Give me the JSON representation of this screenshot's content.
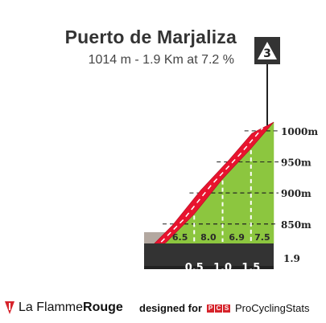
{
  "climb": {
    "title": "Puerto de Marjaliza",
    "subtitle": "1014 m - 1.9 Km at 7.2 %",
    "category": "3"
  },
  "chart_data": {
    "type": "area",
    "title": "Puerto de Marjaliza",
    "subtitle": "1014 m - 1.9 Km at 7.2 %",
    "summit_altitude_m": 1014,
    "length_km": 1.9,
    "avg_gradient_pct": 7.2,
    "category": "3",
    "y_ticks": [
      {
        "value": 1000,
        "label": "1000m"
      },
      {
        "value": 950,
        "label": "950m"
      },
      {
        "value": 900,
        "label": "900m"
      },
      {
        "value": 850,
        "label": "850m"
      }
    ],
    "ylim": [
      820,
      1020
    ],
    "xlim": [
      0,
      1.9
    ],
    "km_markers": [
      {
        "km": 0.5,
        "label": "0.5"
      },
      {
        "km": 1.0,
        "label": "1.0"
      },
      {
        "km": 1.5,
        "label": "1.5"
      }
    ],
    "distance_end_label": "1.9",
    "segments": [
      {
        "from_km": 0.0,
        "to_km": 0.5,
        "gradient": 6.5,
        "label": "6.5"
      },
      {
        "from_km": 0.5,
        "to_km": 1.0,
        "gradient": 8.0,
        "label": "8.0"
      },
      {
        "from_km": 1.0,
        "to_km": 1.5,
        "gradient": 6.9,
        "label": "6.9"
      },
      {
        "from_km": 1.5,
        "to_km": 1.9,
        "gradient": 7.5,
        "label": "7.5"
      }
    ],
    "colors": {
      "gradient_fill": "#8cc63f",
      "road_top": "#e8132e",
      "base_strip": "#333333",
      "wall": "#b3a8a0",
      "marker_flag": "#333333"
    }
  },
  "footer": {
    "brand_light": "La Flamme",
    "brand_bold": "Rouge",
    "designed_for": "designed for",
    "pcs_letters": [
      "P",
      "C",
      "S"
    ],
    "site": "ProCyclingStats"
  }
}
